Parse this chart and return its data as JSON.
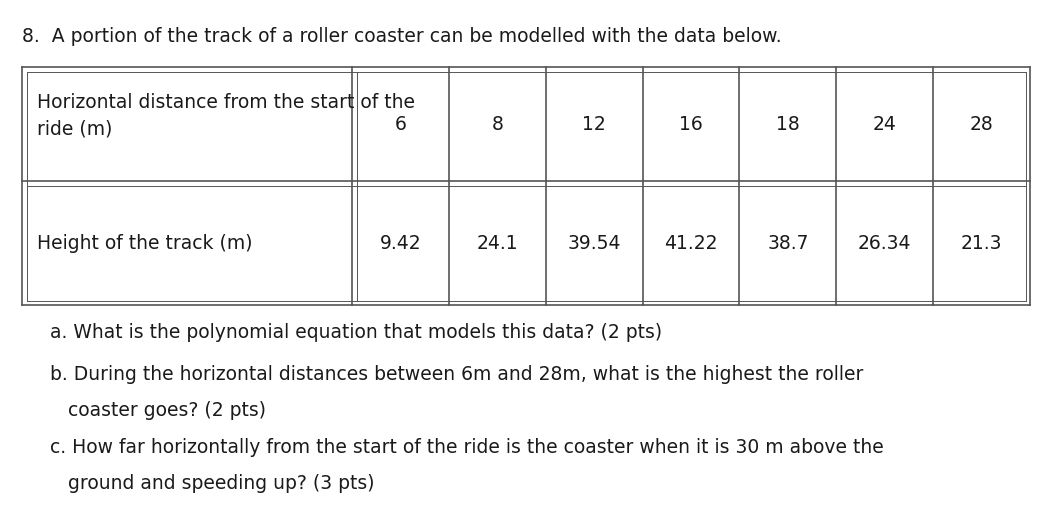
{
  "title": "8.  A portion of the track of a roller coaster can be modelled with the data below.",
  "row1_label": "Horizontal distance from the start of the\nride (m)",
  "row2_label": "Height of the track (m)",
  "col_headers": [
    "6",
    "8",
    "12",
    "16",
    "18",
    "24",
    "28"
  ],
  "row2_values": [
    "9.42",
    "24.1",
    "39.54",
    "41.22",
    "38.7",
    "26.34",
    "21.3"
  ],
  "q_a": "a. What is the polynomial equation that models this data? (2 pts)",
  "q_b_line1": "b. During the horizontal distances between 6m and 28m, what is the highest the roller",
  "q_b_line2": "   coaster goes? (2 pts)",
  "q_c_line1": "c. How far horizontally from the start of the ride is the coaster when it is 30 m above the",
  "q_c_line2": "   ground and speeding up? (3 pts)",
  "background_color": "#ffffff",
  "text_color": "#1a1a1a",
  "font_size": 13.5,
  "table_text_color": "#1a1a1a",
  "border_color": "#555555"
}
